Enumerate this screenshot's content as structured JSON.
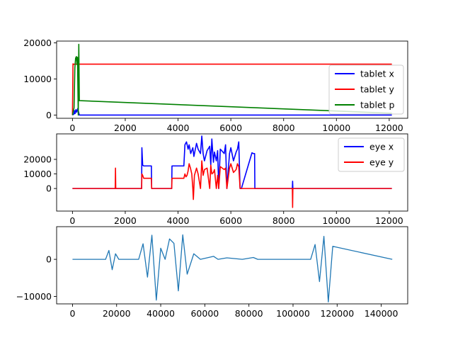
{
  "chart_data": [
    {
      "type": "line",
      "xlim": [
        -600,
        12700
      ],
      "ylim": [
        -900,
        20500
      ],
      "xticks": [
        0,
        2000,
        4000,
        6000,
        8000,
        10000,
        12000
      ],
      "xtick_labels": [
        "0",
        "2000",
        "4000",
        "6000",
        "8000",
        "10000",
        "12000"
      ],
      "yticks": [
        0,
        10000,
        20000
      ],
      "ytick_labels": [
        "0",
        "10000",
        "20000"
      ],
      "grid": false,
      "legend_position": "right",
      "series": [
        {
          "name": "tablet x",
          "color": "#0000ff",
          "x": [
            0,
            60,
            80,
            100,
            130,
            160,
            200,
            260,
            300,
            12100
          ],
          "y": [
            0,
            300,
            1200,
            400,
            1500,
            800,
            1800,
            0,
            0,
            0
          ]
        },
        {
          "name": "tablet y",
          "color": "#ff0000",
          "x": [
            0,
            20,
            40,
            60,
            100,
            12100
          ],
          "y": [
            0,
            14200,
            14000,
            14100,
            14100,
            14100
          ]
        },
        {
          "name": "tablet p",
          "color": "#008000",
          "x": [
            0,
            60,
            90,
            120,
            150,
            170,
            190,
            220,
            240,
            260,
            12100
          ],
          "y": [
            0,
            2000,
            13000,
            15800,
            16200,
            14000,
            16000,
            0,
            19600,
            4000,
            500
          ]
        }
      ]
    },
    {
      "type": "line",
      "xlim": [
        -600,
        12700
      ],
      "ylim": [
        -15500,
        37500
      ],
      "xticks": [
        0,
        2000,
        4000,
        6000,
        8000,
        10000,
        12000
      ],
      "xtick_labels": [
        "0",
        "2000",
        "4000",
        "6000",
        "8000",
        "10000",
        "12000"
      ],
      "yticks": [
        0,
        10000,
        20000
      ],
      "ytick_labels": [
        "0",
        "10000",
        "20000"
      ],
      "grid": false,
      "legend_position": "top-right",
      "series": [
        {
          "name": "eye x",
          "color": "#0000ff",
          "x": [
            0,
            2620,
            2630,
            2660,
            2700,
            2990,
            3000,
            3760,
            3770,
            4220,
            4260,
            4320,
            4380,
            4420,
            4480,
            4520,
            4560,
            4600,
            4700,
            4760,
            4850,
            4900,
            4950,
            5000,
            5100,
            5200,
            5240,
            5280,
            5340,
            5380,
            5450,
            5500,
            5540,
            5600,
            5750,
            5800,
            5850,
            5950,
            6000,
            6100,
            6200,
            6250,
            6300,
            6350,
            6400,
            6800,
            6850,
            6900,
            6910,
            8330,
            8340,
            8350,
            12100
          ],
          "y": [
            0,
            0,
            28000,
            16000,
            15500,
            15500,
            0,
            0,
            15500,
            15500,
            30000,
            32000,
            27000,
            30000,
            24000,
            26000,
            28000,
            22000,
            31000,
            27000,
            24000,
            36000,
            24000,
            19000,
            26000,
            29000,
            16000,
            34000,
            18000,
            25000,
            19000,
            26000,
            0,
            27000,
            24000,
            30000,
            0,
            24000,
            28000,
            19000,
            25000,
            27000,
            32000,
            0,
            0,
            24500,
            24000,
            24000,
            0,
            0,
            5000,
            0,
            0
          ]
        },
        {
          "name": "eye y",
          "color": "#ff0000",
          "x": [
            0,
            1620,
            1630,
            1640,
            2620,
            2630,
            2660,
            2700,
            2990,
            3000,
            3760,
            3770,
            4220,
            4260,
            4300,
            4340,
            4380,
            4420,
            4470,
            4520,
            4560,
            4580,
            4620,
            4700,
            4760,
            4850,
            4900,
            4950,
            5000,
            5100,
            5200,
            5240,
            5280,
            5340,
            5380,
            5450,
            5500,
            5540,
            5600,
            5750,
            5800,
            5850,
            5950,
            6000,
            6100,
            6200,
            6250,
            6300,
            6350,
            8330,
            8340,
            8350,
            12100
          ],
          "y": [
            0,
            0,
            14000,
            0,
            0,
            10000,
            9000,
            7000,
            7000,
            0,
            0,
            7000,
            7000,
            10000,
            8000,
            9000,
            12000,
            17000,
            14000,
            10000,
            0,
            -7500,
            9000,
            14000,
            10000,
            0,
            19000,
            9000,
            13000,
            14000,
            0,
            16000,
            10000,
            11000,
            13000,
            0,
            9000,
            0,
            15000,
            13000,
            14000,
            0,
            14000,
            17000,
            11000,
            13000,
            17000,
            15000,
            0,
            0,
            -13000,
            0,
            0
          ]
        }
      ]
    },
    {
      "type": "line",
      "xlim": [
        -7200,
        152000
      ],
      "ylim": [
        -12000,
        8800
      ],
      "xticks": [
        0,
        20000,
        40000,
        60000,
        80000,
        100000,
        120000,
        140000
      ],
      "xtick_labels": [
        "0",
        "20000",
        "40000",
        "60000",
        "80000",
        "100000",
        "120000",
        "140000"
      ],
      "yticks": [
        -10000,
        0
      ],
      "ytick_labels": [
        "−10000",
        "0"
      ],
      "grid": false,
      "series": [
        {
          "color": "#1f77b4",
          "x": [
            0,
            15000,
            16500,
            18000,
            19500,
            21000,
            30000,
            32000,
            34000,
            36000,
            38000,
            40000,
            42000,
            44000,
            46000,
            48000,
            50000,
            52000,
            55000,
            58000,
            64000,
            66000,
            70000,
            77000,
            82000,
            84000,
            88000,
            108000,
            110000,
            112000,
            114000,
            116000,
            118000,
            145000
          ],
          "y": [
            0,
            0,
            2400,
            -2800,
            1500,
            0,
            0,
            4200,
            -4800,
            6500,
            -11000,
            3000,
            0,
            5500,
            4300,
            -8500,
            6600,
            -4000,
            1500,
            0,
            800,
            0,
            400,
            0,
            500,
            0,
            0,
            0,
            4000,
            -6000,
            6200,
            -11500,
            3500,
            0
          ]
        }
      ]
    }
  ]
}
